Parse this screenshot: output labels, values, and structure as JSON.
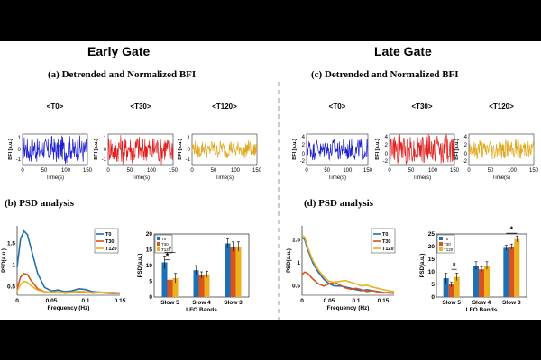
{
  "panels": {
    "left_title": "Early Gate",
    "right_title": "Late Gate",
    "sub_a": "(a) Detrended and Normalized BFI",
    "sub_b": "(b) PSD analysis",
    "sub_c": "(c) Detrended and Normalized BFI",
    "sub_d": "(d) PSD analysis"
  },
  "colors": {
    "T0": "#1f1fd0",
    "T30": "#e01f1f",
    "T120": "#e0a81f",
    "psd_T0": "#1f6fb4",
    "psd_T30": "#d9531e",
    "psd_T120": "#edb120"
  },
  "chart_data": [
    {
      "type": "line",
      "id": "early-bfi",
      "panels": [
        "<T0>",
        "<T30>",
        "<T120>"
      ],
      "xlabel": "Time(s)",
      "ylabel": "BFI [a.u.]",
      "xlim": [
        0,
        150
      ],
      "xticks": [
        "0",
        "50",
        "100",
        "150"
      ],
      "yticks": [
        "-1",
        "0",
        "1"
      ],
      "ylim": [
        -1.5,
        1.5
      ]
    },
    {
      "type": "line",
      "id": "late-bfi",
      "panels": [
        "<T0>",
        "<T30>",
        "<T120>"
      ],
      "xlabel": "Time(s)",
      "ylabel": "BFI [a.u.]",
      "xlim": [
        0,
        150
      ],
      "xticks": [
        "0",
        "50",
        "100",
        "150"
      ],
      "yticks": [
        "4",
        "2",
        "0",
        "-2"
      ],
      "ylim": [
        -2,
        4
      ]
    },
    {
      "type": "line",
      "id": "early-psd",
      "xlabel": "Frequency (Hz)",
      "ylabel": "PSD(a.u.)",
      "xlim": [
        0,
        0.15
      ],
      "ylim": [
        0.3,
        1.9
      ],
      "xticks": [
        "0",
        "0.05",
        "0.1",
        "0.15"
      ],
      "yticks": [
        "0.5",
        "1",
        "1.5"
      ],
      "legend": [
        "T0",
        "T30",
        "T120"
      ],
      "series": [
        {
          "name": "T0",
          "x": [
            0,
            0.005,
            0.01,
            0.015,
            0.02,
            0.03,
            0.04,
            0.05,
            0.06,
            0.07,
            0.08,
            0.09,
            0.1,
            0.11,
            0.12,
            0.13,
            0.14,
            0.15
          ],
          "values": [
            0.95,
            1.6,
            1.78,
            1.7,
            1.4,
            0.8,
            0.48,
            0.4,
            0.42,
            0.38,
            0.4,
            0.45,
            0.43,
            0.38,
            0.37,
            0.36,
            0.36,
            0.35
          ]
        },
        {
          "name": "T30",
          "x": [
            0,
            0.005,
            0.01,
            0.015,
            0.02,
            0.03,
            0.04,
            0.05,
            0.06,
            0.07,
            0.08,
            0.09,
            0.1,
            0.11,
            0.12,
            0.13,
            0.14,
            0.15
          ],
          "values": [
            0.45,
            0.72,
            0.8,
            0.78,
            0.65,
            0.45,
            0.38,
            0.36,
            0.37,
            0.35,
            0.36,
            0.38,
            0.37,
            0.35,
            0.36,
            0.35,
            0.34,
            0.34
          ]
        },
        {
          "name": "T120",
          "x": [
            0,
            0.005,
            0.01,
            0.015,
            0.02,
            0.03,
            0.04,
            0.05,
            0.06,
            0.07,
            0.08,
            0.09,
            0.1,
            0.11,
            0.12,
            0.13,
            0.14,
            0.15
          ],
          "values": [
            0.4,
            0.55,
            0.62,
            0.6,
            0.52,
            0.42,
            0.38,
            0.37,
            0.38,
            0.36,
            0.37,
            0.39,
            0.38,
            0.36,
            0.37,
            0.36,
            0.35,
            0.35
          ]
        }
      ]
    },
    {
      "type": "bar",
      "id": "early-lfo",
      "categories": [
        "Slow 5",
        "Slow 4",
        "Slow 3"
      ],
      "xlabel": "LFO Bands",
      "ylabel": "PSD(a.u.)",
      "ylim": [
        0,
        20
      ],
      "yticks": [
        "0",
        "5",
        "10",
        "15",
        "20"
      ],
      "legend": [
        "T0",
        "T30",
        "T120"
      ],
      "series": [
        {
          "name": "T0",
          "values": [
            11,
            8.5,
            17
          ],
          "errors": [
            2,
            1.5,
            1.5
          ]
        },
        {
          "name": "T30",
          "values": [
            5.5,
            7,
            16
          ],
          "errors": [
            1.5,
            1,
            1.5
          ]
        },
        {
          "name": "T120",
          "values": [
            6,
            7.2,
            16
          ],
          "errors": [
            1.5,
            1,
            1.5
          ]
        }
      ],
      "significance": [
        "*",
        "*"
      ]
    },
    {
      "type": "line",
      "id": "late-psd",
      "xlabel": "Frequency (Hz)",
      "ylabel": "PSD(a.u.)",
      "xlim": [
        0,
        0.17
      ],
      "ylim": [
        0.3,
        1.8
      ],
      "xticks": [
        "0",
        "0.05",
        "0.1",
        "0.15"
      ],
      "yticks": [
        "0.5",
        "1",
        "1.5"
      ],
      "legend": [
        "T0",
        "T30",
        "T120"
      ],
      "series": [
        {
          "name": "T0",
          "x": [
            0,
            0.005,
            0.01,
            0.02,
            0.03,
            0.04,
            0.05,
            0.06,
            0.07,
            0.08,
            0.09,
            0.1,
            0.11,
            0.12,
            0.13,
            0.14,
            0.15,
            0.16,
            0.17
          ],
          "values": [
            1.55,
            1.5,
            1.3,
            1.0,
            0.8,
            0.65,
            0.55,
            0.5,
            0.5,
            0.48,
            0.45,
            0.42,
            0.4,
            0.42,
            0.4,
            0.38,
            0.36,
            0.35,
            0.35
          ]
        },
        {
          "name": "T30",
          "x": [
            0,
            0.005,
            0.01,
            0.02,
            0.03,
            0.04,
            0.05,
            0.06,
            0.07,
            0.08,
            0.09,
            0.1,
            0.11,
            0.12,
            0.13,
            0.14,
            0.15,
            0.16,
            0.17
          ],
          "values": [
            0.75,
            0.8,
            0.78,
            0.65,
            0.55,
            0.5,
            0.55,
            0.58,
            0.52,
            0.46,
            0.43,
            0.45,
            0.42,
            0.38,
            0.4,
            0.37,
            0.35,
            0.36,
            0.34
          ]
        },
        {
          "name": "T120",
          "x": [
            0,
            0.005,
            0.01,
            0.02,
            0.03,
            0.04,
            0.05,
            0.06,
            0.07,
            0.08,
            0.09,
            0.1,
            0.11,
            0.12,
            0.13,
            0.14,
            0.15,
            0.16,
            0.17
          ],
          "values": [
            1.6,
            1.55,
            1.35,
            1.05,
            0.85,
            0.7,
            0.6,
            0.58,
            0.6,
            0.62,
            0.58,
            0.55,
            0.5,
            0.52,
            0.48,
            0.45,
            0.42,
            0.4,
            0.38
          ]
        }
      ]
    },
    {
      "type": "bar",
      "id": "late-lfo",
      "categories": [
        "Slow 5",
        "Slow 4",
        "Slow 3"
      ],
      "xlabel": "LFO Bands",
      "ylabel": "PSD(a.u.)",
      "ylim": [
        0,
        25
      ],
      "yticks": [
        "0",
        "5",
        "10",
        "15",
        "20",
        "25"
      ],
      "legend": [
        "T0",
        "T30",
        "T120"
      ],
      "series": [
        {
          "name": "T0",
          "values": [
            7.5,
            12.5,
            19.5
          ],
          "errors": [
            2,
            1.5,
            1
          ]
        },
        {
          "name": "T30",
          "values": [
            5,
            11,
            20
          ],
          "errors": [
            1,
            1,
            1
          ]
        },
        {
          "name": "T120",
          "values": [
            8,
            12.5,
            23
          ],
          "errors": [
            1.5,
            1.5,
            1.2
          ]
        }
      ],
      "significance": [
        "*",
        "*"
      ]
    }
  ]
}
